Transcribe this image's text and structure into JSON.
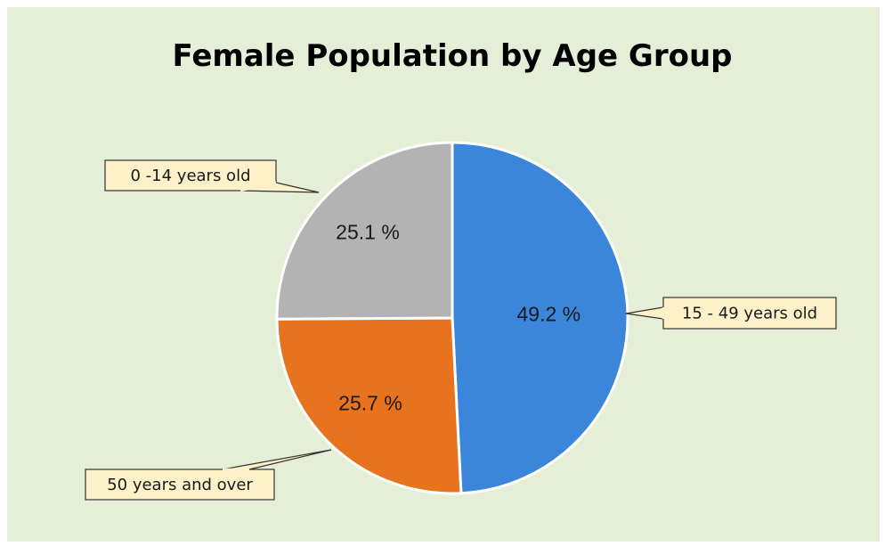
{
  "chart_data": {
    "type": "pie",
    "title": "Female Population by Age Group",
    "categories": [
      "15 - 49 years old",
      "50 years and over",
      "0 -14 years old"
    ],
    "values": [
      49.2,
      25.7,
      25.1
    ],
    "value_labels": [
      "49.2 %",
      "25.7 %",
      "25.1 %"
    ],
    "colors": [
      "#3b86da",
      "#e8731f",
      "#b3b3b3"
    ]
  }
}
